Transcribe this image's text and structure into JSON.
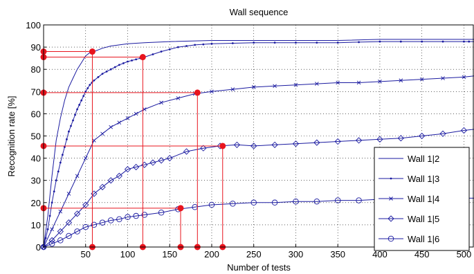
{
  "chart_data": {
    "type": "line",
    "title": "Wall sequence",
    "xlabel": "Number of tests",
    "ylabel": "Recognition rate [%]",
    "xlim": [
      0,
      512
    ],
    "ylim": [
      0,
      100
    ],
    "xticks": [
      50,
      100,
      150,
      200,
      250,
      300,
      350,
      400,
      450,
      500
    ],
    "yticks": [
      0,
      10,
      20,
      30,
      40,
      50,
      60,
      70,
      80,
      90,
      100
    ],
    "grid": true,
    "legend_position": "right",
    "series": [
      {
        "name": "Wall 1|2",
        "marker": "none",
        "color": "#1a1aa0",
        "points": [
          [
            0,
            0
          ],
          [
            5,
            14
          ],
          [
            10,
            32
          ],
          [
            15,
            48
          ],
          [
            20,
            58
          ],
          [
            25,
            66
          ],
          [
            30,
            72
          ],
          [
            35,
            76
          ],
          [
            40,
            80
          ],
          [
            45,
            83
          ],
          [
            50,
            86
          ],
          [
            55,
            87.5
          ],
          [
            60,
            88
          ],
          [
            70,
            89.5
          ],
          [
            80,
            90.5
          ],
          [
            100,
            91.5
          ],
          [
            120,
            92
          ],
          [
            150,
            92.5
          ],
          [
            200,
            93
          ],
          [
            250,
            93
          ],
          [
            300,
            93
          ],
          [
            350,
            93
          ],
          [
            400,
            93.5
          ],
          [
            450,
            93.5
          ],
          [
            500,
            93.5
          ],
          [
            512,
            93.5
          ]
        ]
      },
      {
        "name": "Wall 1|3",
        "marker": "dot",
        "color": "#1a1aa0",
        "points": [
          [
            0,
            0
          ],
          [
            5,
            8
          ],
          [
            10,
            20
          ],
          [
            15,
            30
          ],
          [
            20,
            38
          ],
          [
            25,
            45
          ],
          [
            30,
            52
          ],
          [
            35,
            57
          ],
          [
            40,
            62
          ],
          [
            45,
            66
          ],
          [
            50,
            70
          ],
          [
            55,
            73
          ],
          [
            60,
            75
          ],
          [
            70,
            78
          ],
          [
            80,
            80
          ],
          [
            90,
            82
          ],
          [
            100,
            83.5
          ],
          [
            110,
            84.5
          ],
          [
            120,
            85.5
          ],
          [
            140,
            88
          ],
          [
            160,
            90
          ],
          [
            180,
            91
          ],
          [
            200,
            91.5
          ],
          [
            250,
            92
          ],
          [
            300,
            92
          ],
          [
            350,
            92
          ],
          [
            400,
            92.5
          ],
          [
            450,
            92.5
          ],
          [
            500,
            92.5
          ],
          [
            512,
            92.5
          ]
        ]
      },
      {
        "name": "Wall 1|4",
        "marker": "x",
        "color": "#1a1aa0",
        "points": [
          [
            0,
            0
          ],
          [
            10,
            8
          ],
          [
            20,
            16
          ],
          [
            30,
            24
          ],
          [
            40,
            32
          ],
          [
            50,
            40
          ],
          [
            60,
            48
          ],
          [
            70,
            51
          ],
          [
            80,
            54
          ],
          [
            90,
            56
          ],
          [
            100,
            58
          ],
          [
            110,
            60
          ],
          [
            120,
            62
          ],
          [
            140,
            65
          ],
          [
            160,
            67
          ],
          [
            180,
            69
          ],
          [
            200,
            70
          ],
          [
            225,
            71
          ],
          [
            250,
            72
          ],
          [
            275,
            72.5
          ],
          [
            300,
            73
          ],
          [
            325,
            73.5
          ],
          [
            350,
            74
          ],
          [
            375,
            74
          ],
          [
            400,
            74.5
          ],
          [
            425,
            75
          ],
          [
            450,
            75.5
          ],
          [
            475,
            76
          ],
          [
            500,
            76.5
          ],
          [
            512,
            77
          ]
        ]
      },
      {
        "name": "Wall 1|5",
        "marker": "diamond",
        "color": "#1a1aa0",
        "points": [
          [
            0,
            0
          ],
          [
            10,
            3
          ],
          [
            20,
            7
          ],
          [
            30,
            11
          ],
          [
            40,
            15
          ],
          [
            50,
            19
          ],
          [
            60,
            24
          ],
          [
            70,
            27
          ],
          [
            80,
            30
          ],
          [
            90,
            32
          ],
          [
            100,
            35
          ],
          [
            110,
            36
          ],
          [
            120,
            37
          ],
          [
            130,
            38
          ],
          [
            140,
            39
          ],
          [
            150,
            40
          ],
          [
            170,
            43
          ],
          [
            190,
            44.5
          ],
          [
            210,
            45.5
          ],
          [
            230,
            46
          ],
          [
            250,
            45.5
          ],
          [
            275,
            46
          ],
          [
            300,
            46.5
          ],
          [
            325,
            47
          ],
          [
            350,
            47.5
          ],
          [
            375,
            48
          ],
          [
            400,
            48.5
          ],
          [
            425,
            49
          ],
          [
            450,
            50
          ],
          [
            475,
            51
          ],
          [
            500,
            52.5
          ],
          [
            512,
            53
          ]
        ]
      },
      {
        "name": "Wall 1|6",
        "marker": "circle",
        "color": "#1a1aa0",
        "points": [
          [
            0,
            0
          ],
          [
            10,
            1.5
          ],
          [
            20,
            3
          ],
          [
            30,
            5
          ],
          [
            40,
            7
          ],
          [
            50,
            9
          ],
          [
            60,
            10
          ],
          [
            70,
            11
          ],
          [
            80,
            12
          ],
          [
            90,
            12.5
          ],
          [
            100,
            13.5
          ],
          [
            110,
            14
          ],
          [
            120,
            14.5
          ],
          [
            140,
            15.5
          ],
          [
            160,
            17
          ],
          [
            180,
            18
          ],
          [
            200,
            19
          ],
          [
            225,
            19.5
          ],
          [
            250,
            20
          ],
          [
            275,
            20
          ],
          [
            300,
            20.5
          ],
          [
            325,
            20.5
          ],
          [
            350,
            21
          ],
          [
            375,
            21
          ],
          [
            400,
            21.5
          ],
          [
            425,
            21.5
          ],
          [
            450,
            21.5
          ],
          [
            475,
            21.5
          ],
          [
            500,
            22
          ],
          [
            512,
            22
          ]
        ]
      }
    ],
    "annotation_points": [
      {
        "x": 58,
        "y": 88
      },
      {
        "x": 118,
        "y": 85.5
      },
      {
        "x": 183,
        "y": 69.5
      },
      {
        "x": 213,
        "y": 45.5
      },
      {
        "x": 163,
        "y": 17.5
      }
    ],
    "annotation_color": "#e8141e"
  }
}
